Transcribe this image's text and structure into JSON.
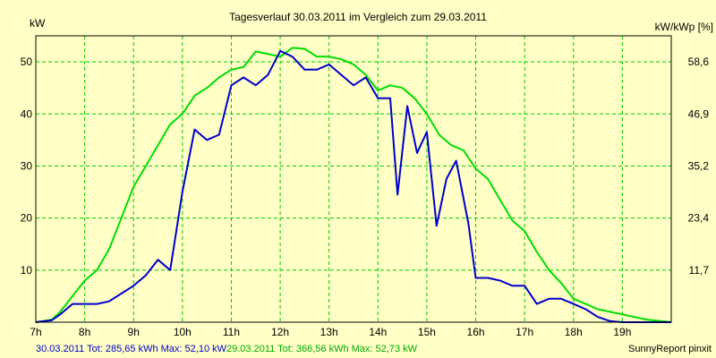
{
  "chart_data": {
    "type": "line",
    "title": "Tagesverlauf 30.03.2011 im Vergleich zum 29.03.2011",
    "ylabel_left": "kW",
    "ylabel_right": "kW/kWp [%]",
    "x_label_format": "{h}h",
    "xlim": [
      7,
      20
    ],
    "x_ticks": [
      7,
      8,
      9,
      10,
      11,
      12,
      13,
      14,
      15,
      16,
      17,
      18,
      19
    ],
    "ylim_left": [
      0,
      55
    ],
    "y_ticks_left": [
      10,
      20,
      30,
      40,
      50
    ],
    "y_ticks_right": [
      "11,7",
      "23,4",
      "35,2",
      "46,9",
      "58,6"
    ],
    "grid": true,
    "background": "#ffffc6",
    "grid_color": "#00cc00",
    "credit": "SunnyReport pinxit",
    "series": [
      {
        "name": "30.03.2011",
        "legend": "30.03.2011 Tot: 285,65 kWh Max: 52,10 kW",
        "color": "#0000cc",
        "x": [
          7.0,
          7.33,
          7.5,
          7.75,
          8.0,
          8.25,
          8.5,
          8.75,
          9.0,
          9.25,
          9.5,
          9.75,
          10.0,
          10.25,
          10.5,
          10.75,
          11.0,
          11.25,
          11.5,
          11.75,
          12.0,
          12.25,
          12.5,
          12.75,
          13.0,
          13.25,
          13.5,
          13.75,
          14.0,
          14.25,
          14.4,
          14.6,
          14.8,
          15.0,
          15.2,
          15.4,
          15.6,
          15.85,
          16.0,
          16.25,
          16.5,
          16.75,
          17.0,
          17.25,
          17.5,
          17.75,
          18.0,
          18.25,
          18.5,
          18.75,
          19.0,
          19.5,
          20.0
        ],
        "values": [
          0.0,
          0.4,
          1.5,
          3.5,
          3.5,
          3.5,
          4.0,
          5.5,
          7.0,
          9.0,
          12.0,
          10.0,
          25.0,
          37.0,
          35.0,
          36.0,
          45.5,
          47.0,
          45.5,
          47.5,
          52.1,
          51.0,
          48.5,
          48.5,
          49.5,
          47.5,
          45.5,
          47.0,
          43.0,
          43.0,
          24.5,
          41.5,
          32.5,
          36.5,
          18.5,
          27.5,
          31.0,
          19.0,
          8.5,
          8.5,
          8.0,
          7.0,
          7.0,
          3.5,
          4.5,
          4.5,
          3.5,
          2.5,
          1.0,
          0.2,
          0.0,
          0.0,
          0.0
        ]
      },
      {
        "name": "29.03.2011",
        "legend": "29.03.2011 Tot: 366,56 kWh Max: 52,73 kW",
        "color": "#00dd00",
        "x": [
          7.0,
          7.33,
          7.5,
          7.75,
          8.0,
          8.25,
          8.5,
          8.75,
          9.0,
          9.25,
          9.5,
          9.75,
          10.0,
          10.25,
          10.5,
          10.75,
          11.0,
          11.25,
          11.5,
          11.75,
          12.0,
          12.25,
          12.5,
          12.75,
          13.0,
          13.25,
          13.5,
          13.75,
          14.0,
          14.25,
          14.5,
          14.75,
          15.0,
          15.25,
          15.5,
          15.75,
          16.0,
          16.25,
          16.5,
          16.75,
          17.0,
          17.25,
          17.5,
          17.75,
          18.0,
          18.25,
          18.5,
          18.75,
          19.0,
          19.5,
          20.0
        ],
        "values": [
          0.0,
          0.5,
          2.0,
          5.0,
          8.0,
          10.0,
          14.0,
          20.0,
          26.0,
          30.0,
          34.0,
          38.0,
          40.0,
          43.5,
          45.0,
          47.0,
          48.5,
          49.0,
          52.0,
          51.5,
          51.0,
          52.7,
          52.5,
          51.0,
          51.0,
          50.5,
          49.5,
          47.5,
          44.5,
          45.5,
          45.0,
          43.0,
          40.0,
          36.0,
          34.0,
          33.0,
          29.5,
          27.5,
          23.5,
          19.5,
          17.5,
          13.5,
          10.0,
          7.5,
          4.5,
          3.5,
          2.5,
          2.0,
          1.5,
          0.5,
          0.0
        ]
      }
    ]
  }
}
